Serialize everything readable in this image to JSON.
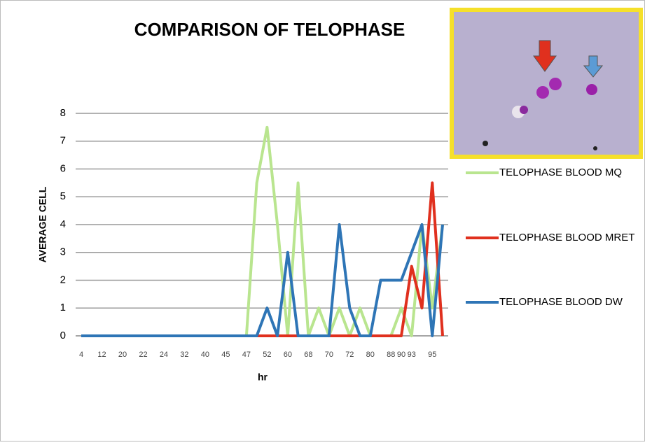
{
  "chart_data": {
    "type": "line",
    "title": "COMPARISON OF TELOPHASE",
    "x_label": "hr",
    "y_label": "AVERAGE CELL",
    "categories": [
      "4",
      null,
      "12",
      null,
      "20",
      null,
      "22",
      null,
      "24",
      null,
      "32",
      null,
      "40",
      null,
      "45",
      null,
      "47",
      null,
      "52",
      null,
      "60",
      null,
      "68",
      null,
      "70",
      null,
      "72",
      null,
      "80",
      null,
      "88",
      "90",
      "93",
      null,
      "95",
      null
    ],
    "series": [
      {
        "name": "TELOPHASE BLOOD MQ",
        "color": "#b9e58f",
        "values": [
          0,
          0,
          0,
          0,
          0,
          0,
          0,
          0,
          0,
          0,
          0,
          0,
          0,
          0,
          0,
          0,
          0,
          5.5,
          7.5,
          4,
          0,
          5.5,
          0,
          1,
          0,
          1,
          0,
          1,
          0,
          0,
          0,
          1,
          0,
          4,
          1,
          4
        ]
      },
      {
        "name": "TELOPHASE BLOOD MRET",
        "color": "#e0301e",
        "values": [
          0,
          0,
          0,
          0,
          0,
          0,
          0,
          0,
          0,
          0,
          0,
          0,
          0,
          0,
          0,
          0,
          0,
          0,
          0,
          0,
          0,
          0,
          0,
          0,
          0,
          0,
          0,
          0,
          0,
          0,
          0,
          0,
          2.5,
          1,
          5.5,
          0
        ]
      },
      {
        "name": "TELOPHASE BLOOD DW",
        "color": "#2e75b6",
        "values": [
          0,
          0,
          0,
          0,
          0,
          0,
          0,
          0,
          0,
          0,
          0,
          0,
          0,
          0,
          0,
          0,
          0,
          0,
          1,
          0,
          3,
          0,
          0,
          0,
          0,
          4,
          1,
          0,
          0,
          2,
          2,
          2,
          3,
          4,
          0,
          4
        ]
      }
    ],
    "ylim": [
      0,
      8
    ],
    "yticks": [
      0,
      1,
      2,
      3,
      4,
      5,
      6,
      7,
      8
    ],
    "grid": true
  }
}
